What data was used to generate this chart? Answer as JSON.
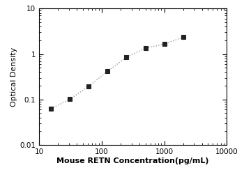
{
  "x_data": [
    15.6,
    31.2,
    62.5,
    125,
    250,
    500,
    1000,
    2000
  ],
  "y_data": [
    0.063,
    0.102,
    0.197,
    0.42,
    0.85,
    1.35,
    1.65,
    2.35
  ],
  "xlabel": "Mouse RETN Concentration(pg/mL)",
  "ylabel": "Optical Density",
  "xlim": [
    10,
    10000
  ],
  "ylim": [
    0.01,
    10
  ],
  "xticks": [
    10,
    100,
    1000,
    10000
  ],
  "yticks": [
    0.01,
    0.1,
    1,
    10
  ],
  "marker": "s",
  "marker_color": "#222222",
  "line_color": "#999999",
  "line_style": ":",
  "marker_size": 4.5,
  "line_width": 1.0,
  "background_color": "#ffffff",
  "xlabel_fontsize": 8,
  "ylabel_fontsize": 8,
  "tick_labelsize": 7.5
}
